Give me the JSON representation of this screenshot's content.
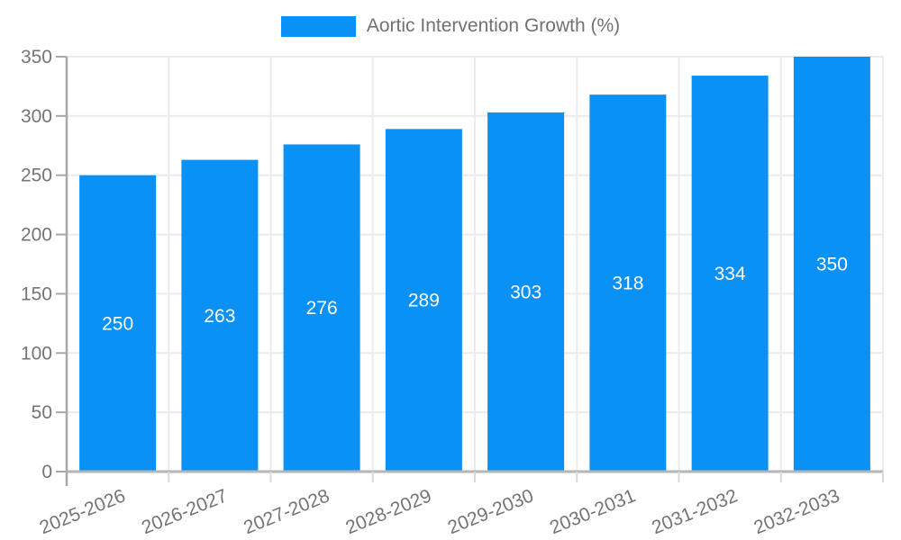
{
  "chart_data": {
    "type": "bar",
    "title": "Aortic Intervention Growth (%)",
    "legend": {
      "label": "Aortic Intervention Growth (%)",
      "position": "top"
    },
    "categories": [
      "2025-2026",
      "2026-2027",
      "2027-2028",
      "2028-2029",
      "2029-2030",
      "2030-2031",
      "2031-2032",
      "2032-2033"
    ],
    "values": [
      250,
      263,
      276,
      289,
      303,
      318,
      334,
      350
    ],
    "bar_value_labels": [
      "250",
      "263",
      "276",
      "289",
      "303",
      "318",
      "334",
      "350"
    ],
    "xlabel": "",
    "ylabel": "",
    "ylim": [
      0,
      350
    ],
    "yticks": [
      0,
      50,
      100,
      150,
      200,
      250,
      300,
      350
    ],
    "grid": true,
    "x_tick_rotation_deg": -22,
    "colors": {
      "bar": "#0991f5",
      "bar_label": "#ffffff",
      "grid": "#ececec",
      "y_axis": "#a8a8a8",
      "x_axis": "#b5b5b5",
      "boundary_tick": "#d9d9d9",
      "tick_label": "#757575",
      "legend_text": "#6e7276"
    }
  }
}
